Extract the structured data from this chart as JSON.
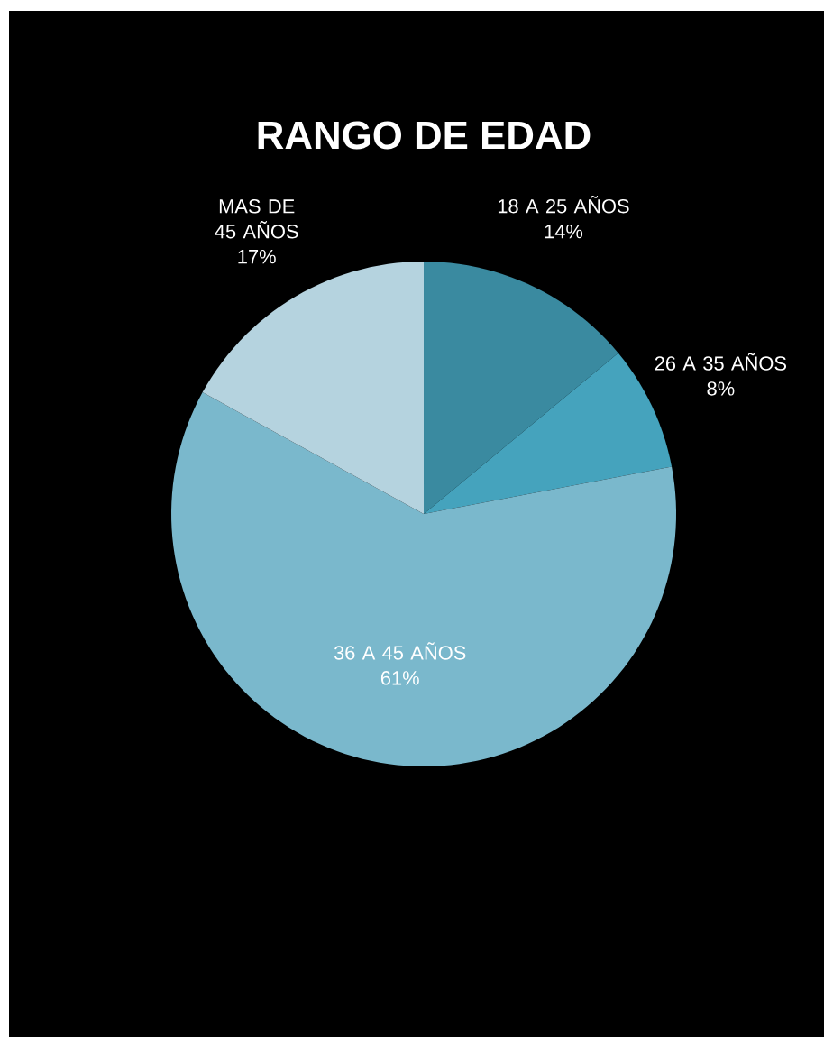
{
  "chart_data": {
    "type": "pie",
    "title": "RANGO DE EDAD",
    "categories": [
      "18 A 25 AÑOS",
      "26 A 35 AÑOS",
      "36 A 45 AÑOS",
      "MAS DE 45 AÑOS"
    ],
    "values": [
      14,
      8,
      61,
      17
    ],
    "value_labels": [
      "14%",
      "8%",
      "61%",
      "17%"
    ],
    "colors": [
      "#3a8aa0",
      "#45a3bd",
      "#7ab8cc",
      "#b5d3df"
    ]
  }
}
